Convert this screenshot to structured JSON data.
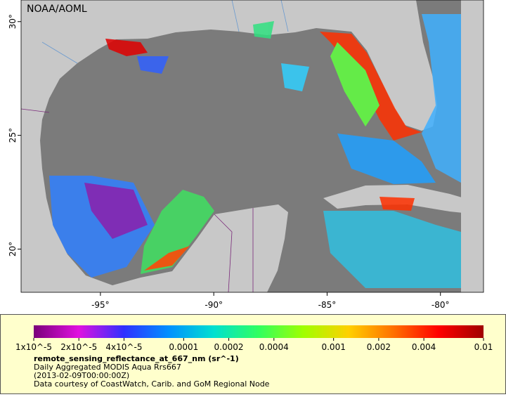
{
  "map": {
    "label": "NOAA/AOML",
    "xlim": [
      -98.5,
      -78.1
    ],
    "ylim": [
      18.1,
      30.95
    ],
    "xticks": [
      {
        "value": -95,
        "label": "-95°"
      },
      {
        "value": -90,
        "label": "-90°"
      },
      {
        "value": -85,
        "label": "-85°"
      },
      {
        "value": -80,
        "label": "-80°"
      }
    ],
    "yticks": [
      {
        "value": 30,
        "label": "30°"
      },
      {
        "value": 25,
        "label": "25°"
      },
      {
        "value": 20,
        "label": "20°"
      }
    ]
  },
  "colorbar": {
    "scale": "log",
    "lim": [
      1e-05,
      0.01
    ],
    "colors": [
      "#7a007a",
      "#e010e0",
      "#3030ff",
      "#0090ff",
      "#00e0d0",
      "#30ff60",
      "#a0ff00",
      "#ffd000",
      "#ff7000",
      "#ff0000",
      "#a00000"
    ],
    "ticks": [
      {
        "value": 1e-05,
        "label": "1x10^-5"
      },
      {
        "value": 2e-05,
        "label": "2x10^-5"
      },
      {
        "value": 4e-05,
        "label": "4x10^-5"
      },
      0.0001,
      0.0002,
      0.0004,
      0.001,
      0.002,
      0.004,
      0.01
    ],
    "title": "remote_sensing_reflectance_at_667_nm (sr^-1)",
    "lines": [
      "Daily Aggregated MODIS Aqua Rrs667",
      "(2013-02-09T00:00:00Z)",
      "Data courtesy of CoastWatch, Carib. and GoM Regional Node"
    ]
  }
}
